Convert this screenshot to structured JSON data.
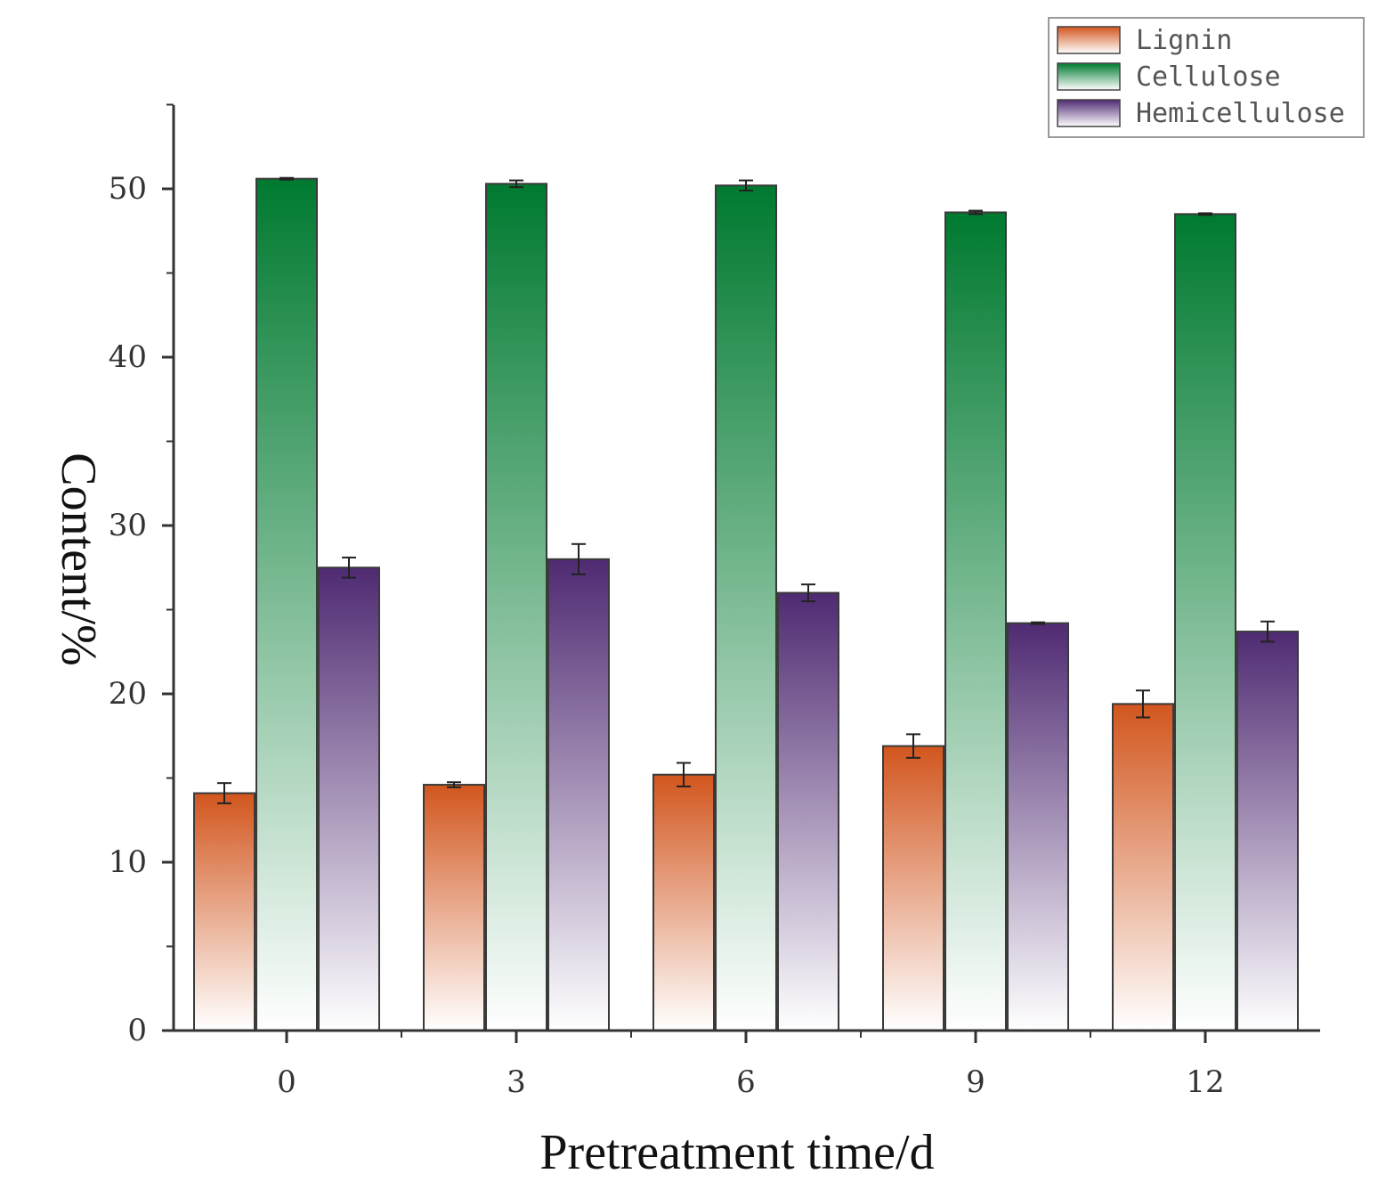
{
  "chart_data": {
    "type": "bar",
    "title": "",
    "xlabel": "Pretreatment time/d",
    "ylabel": "Content/%",
    "categories": [
      "0",
      "3",
      "6",
      "9",
      "12"
    ],
    "ylim": [
      0,
      55
    ],
    "yticks": [
      "0",
      "10",
      "20",
      "30",
      "40",
      "50"
    ],
    "legend_position": "top-right",
    "series": [
      {
        "name": "Lignin",
        "color": "#d2561e",
        "values": [
          14.1,
          14.6,
          15.2,
          16.9,
          19.4
        ],
        "errors": [
          0.6,
          0.15,
          0.7,
          0.7,
          0.8
        ]
      },
      {
        "name": "Cellulose",
        "color": "#007a30",
        "values": [
          50.6,
          50.3,
          50.2,
          48.6,
          48.5
        ],
        "errors": [
          0.05,
          0.2,
          0.3,
          0.1,
          0.05
        ]
      },
      {
        "name": "Hemicellulose",
        "color": "#4f2a72",
        "values": [
          27.5,
          28.0,
          26.0,
          24.2,
          23.7
        ],
        "errors": [
          0.6,
          0.9,
          0.5,
          0.05,
          0.6
        ]
      }
    ]
  }
}
